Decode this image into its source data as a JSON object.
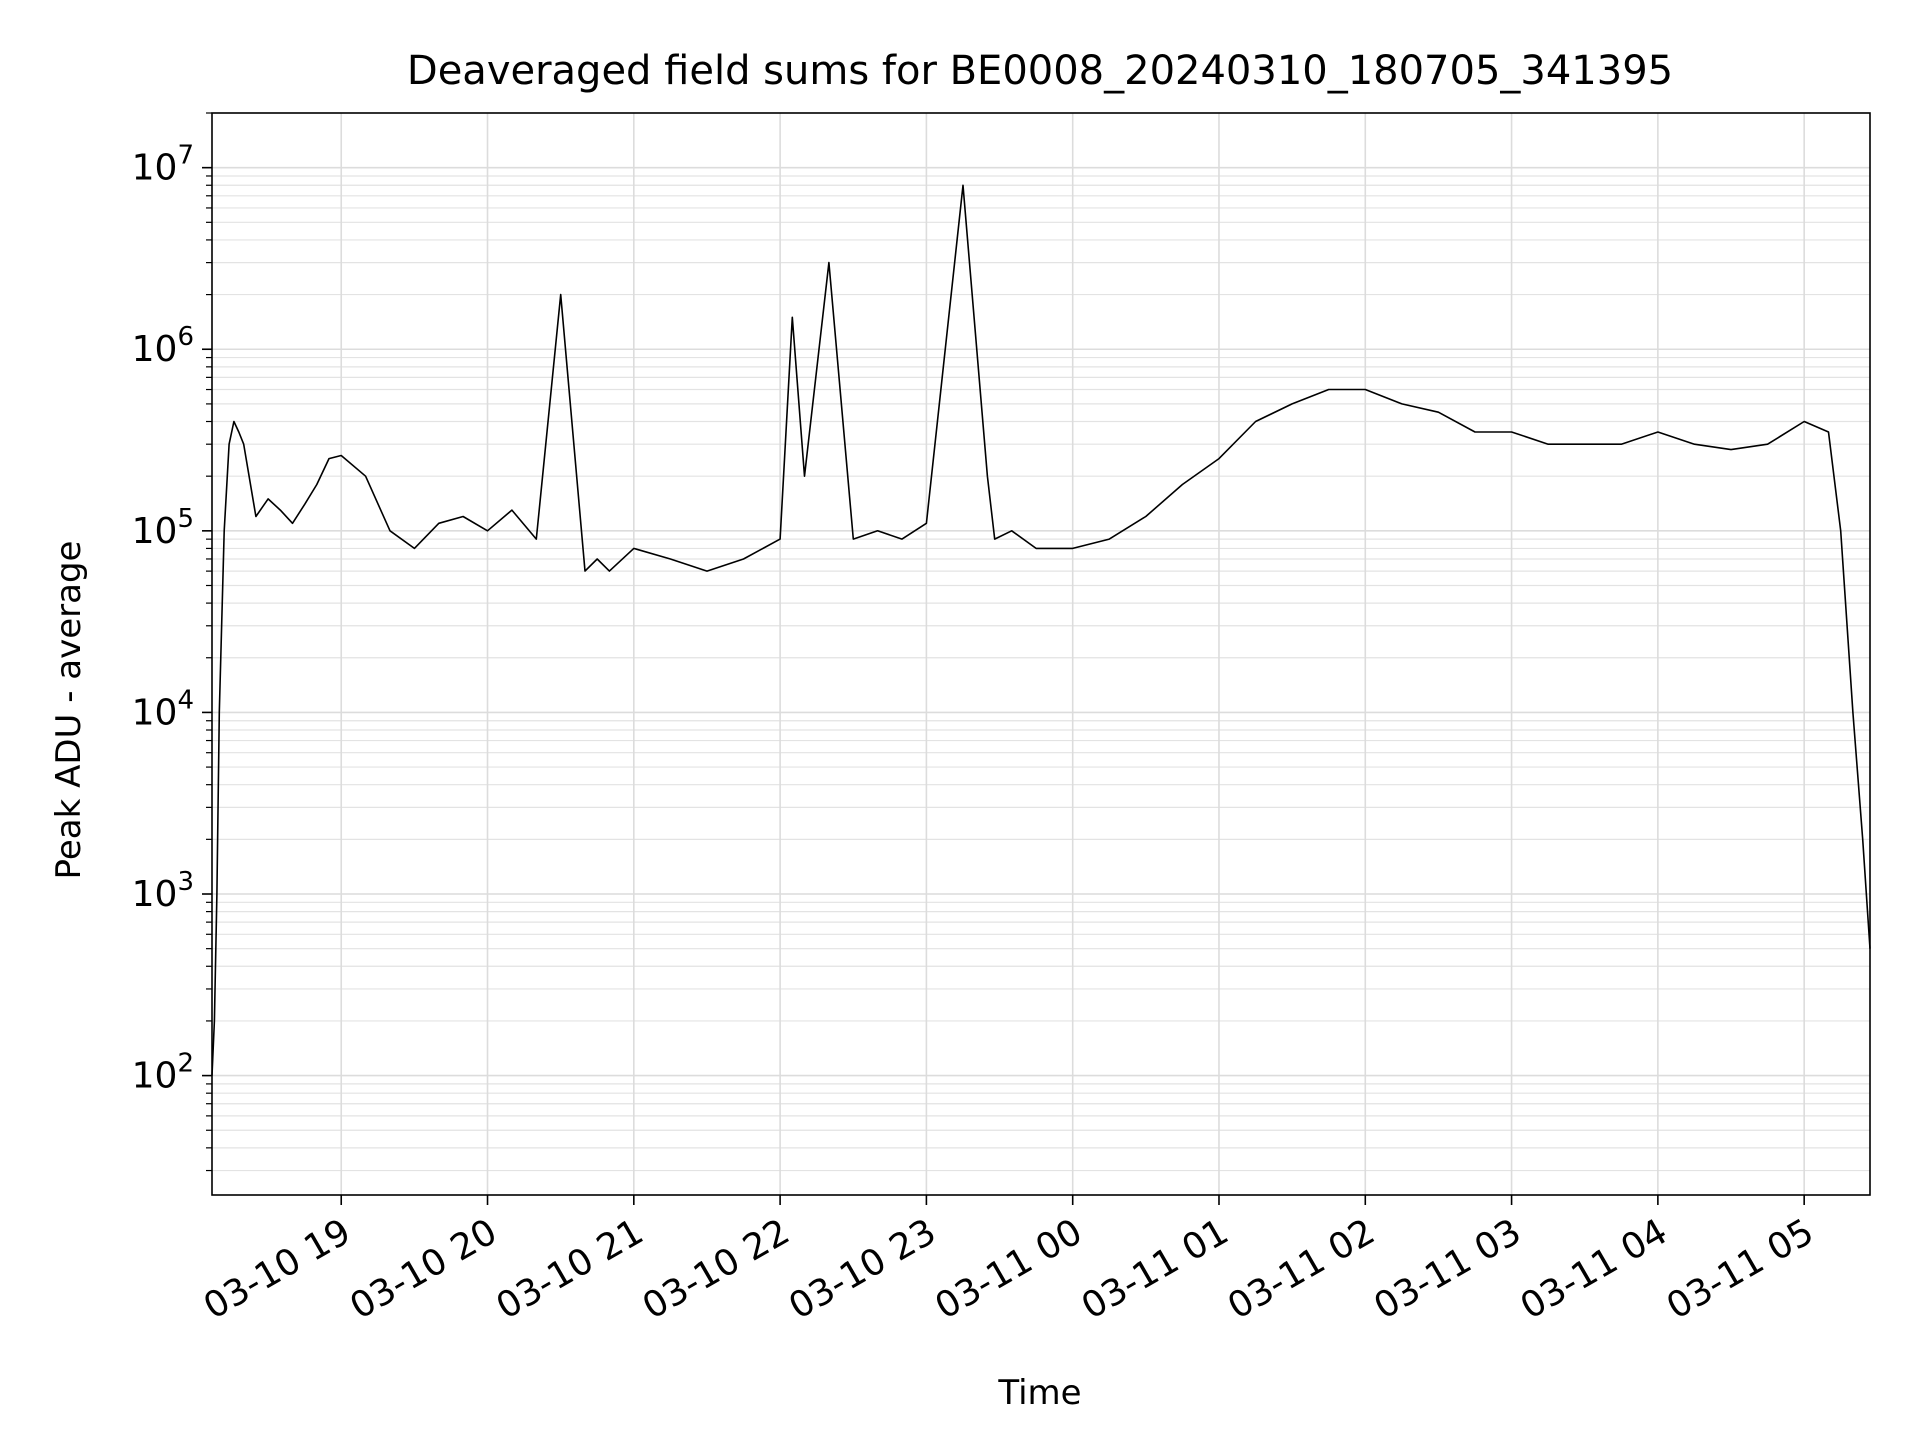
{
  "chart_data": {
    "type": "line",
    "title": "Deaveraged field sums for BE0008_20240310_180705_341395",
    "xlabel": "Time",
    "ylabel": "Peak ADU - average",
    "yscale": "log",
    "ylim": [
      22,
      20000000
    ],
    "xlim": [
      "2024-03-10 18:07",
      "2024-03-11 05:27"
    ],
    "grid": "major and minor, light gray",
    "line_color": "#000000",
    "x_ticks": [
      {
        "x": "2024-03-10 19:00",
        "label": "03-10 19"
      },
      {
        "x": "2024-03-10 20:00",
        "label": "03-10 20"
      },
      {
        "x": "2024-03-10 21:00",
        "label": "03-10 21"
      },
      {
        "x": "2024-03-10 22:00",
        "label": "03-10 22"
      },
      {
        "x": "2024-03-10 23:00",
        "label": "03-10 23"
      },
      {
        "x": "2024-03-11 00:00",
        "label": "03-11 00"
      },
      {
        "x": "2024-03-11 01:00",
        "label": "03-11 01"
      },
      {
        "x": "2024-03-11 02:00",
        "label": "03-11 02"
      },
      {
        "x": "2024-03-11 03:00",
        "label": "03-11 03"
      },
      {
        "x": "2024-03-11 04:00",
        "label": "03-11 04"
      },
      {
        "x": "2024-03-11 05:00",
        "label": "03-11 05"
      }
    ],
    "y_ticks": [
      {
        "y": 100,
        "base": "10",
        "exp": "2"
      },
      {
        "y": 1000,
        "base": "10",
        "exp": "3"
      },
      {
        "y": 10000,
        "base": "10",
        "exp": "4"
      },
      {
        "y": 100000,
        "base": "10",
        "exp": "5"
      },
      {
        "y": 1000000,
        "base": "10",
        "exp": "6"
      },
      {
        "y": 10000000,
        "base": "10",
        "exp": "7"
      }
    ],
    "series": [
      {
        "x": [
          "2024-03-10 18:07",
          "2024-03-10 18:08",
          "2024-03-10 18:09",
          "2024-03-10 18:10",
          "2024-03-10 18:12",
          "2024-03-10 18:14",
          "2024-03-10 18:16",
          "2024-03-10 18:18",
          "2024-03-10 18:20",
          "2024-03-10 18:25",
          "2024-03-10 18:30",
          "2024-03-10 18:35",
          "2024-03-10 18:40",
          "2024-03-10 18:45",
          "2024-03-10 18:50",
          "2024-03-10 18:55",
          "2024-03-10 19:00",
          "2024-03-10 19:10",
          "2024-03-10 19:20",
          "2024-03-10 19:30",
          "2024-03-10 19:40",
          "2024-03-10 19:50",
          "2024-03-10 20:00",
          "2024-03-10 20:10",
          "2024-03-10 20:20",
          "2024-03-10 20:30",
          "2024-03-10 20:40",
          "2024-03-10 20:45",
          "2024-03-10 20:50",
          "2024-03-10 21:00",
          "2024-03-10 21:15",
          "2024-03-10 21:30",
          "2024-03-10 21:45",
          "2024-03-10 22:00",
          "2024-03-10 22:05",
          "2024-03-10 22:10",
          "2024-03-10 22:20",
          "2024-03-10 22:30",
          "2024-03-10 22:40",
          "2024-03-10 22:50",
          "2024-03-10 23:00",
          "2024-03-10 23:15",
          "2024-03-10 23:25",
          "2024-03-10 23:28",
          "2024-03-10 23:35",
          "2024-03-10 23:45",
          "2024-03-11 00:00",
          "2024-03-11 00:15",
          "2024-03-11 00:30",
          "2024-03-11 00:45",
          "2024-03-11 01:00",
          "2024-03-11 01:15",
          "2024-03-11 01:30",
          "2024-03-11 01:45",
          "2024-03-11 02:00",
          "2024-03-11 02:15",
          "2024-03-11 02:30",
          "2024-03-11 02:45",
          "2024-03-11 03:00",
          "2024-03-11 03:15",
          "2024-03-11 03:30",
          "2024-03-11 03:45",
          "2024-03-11 04:00",
          "2024-03-11 04:15",
          "2024-03-11 04:30",
          "2024-03-11 04:45",
          "2024-03-11 05:00",
          "2024-03-11 05:10",
          "2024-03-11 05:15",
          "2024-03-11 05:20",
          "2024-03-11 05:24",
          "2024-03-11 05:27"
        ],
        "values": [
          100,
          200,
          1000,
          10000,
          100000,
          300000,
          400000,
          350000,
          300000,
          120000,
          150000,
          130000,
          110000,
          140000,
          180000,
          250000,
          260000,
          200000,
          100000,
          80000,
          110000,
          120000,
          100000,
          130000,
          90000,
          2000000,
          60000,
          70000,
          60000,
          80000,
          70000,
          60000,
          70000,
          90000,
          1500000,
          200000,
          3000000,
          90000,
          100000,
          90000,
          110000,
          8000000,
          200000,
          90000,
          100000,
          80000,
          80000,
          90000,
          120000,
          180000,
          250000,
          400000,
          500000,
          600000,
          600000,
          500000,
          450000,
          350000,
          350000,
          300000,
          300000,
          300000,
          350000,
          300000,
          280000,
          300000,
          400000,
          350000,
          100000,
          10000,
          2000,
          500
        ]
      }
    ]
  }
}
